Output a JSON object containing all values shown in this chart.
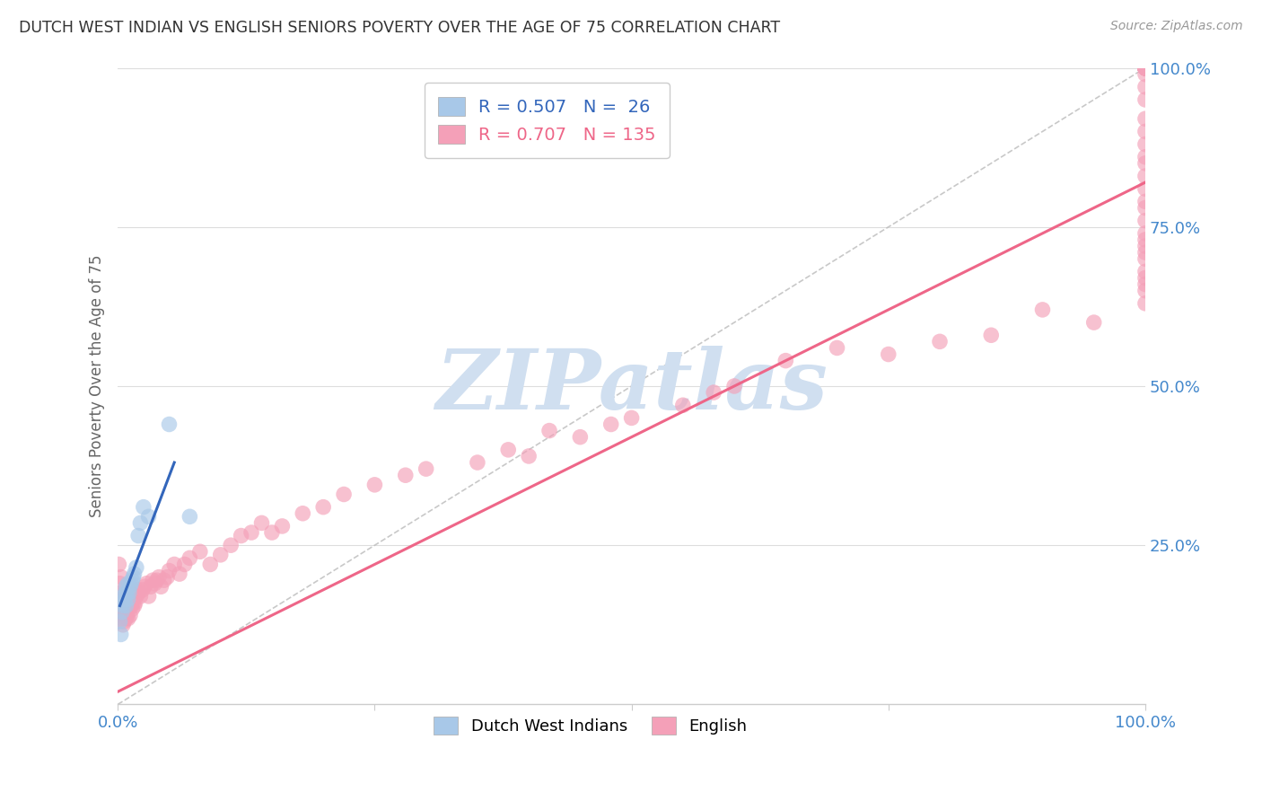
{
  "title": "DUTCH WEST INDIAN VS ENGLISH SENIORS POVERTY OVER THE AGE OF 75 CORRELATION CHART",
  "source": "Source: ZipAtlas.com",
  "ylabel": "Seniors Poverty Over the Age of 75",
  "blue_R": 0.507,
  "blue_N": 26,
  "pink_R": 0.707,
  "pink_N": 135,
  "blue_label": "Dutch West Indians",
  "pink_label": "English",
  "xlim": [
    0,
    1
  ],
  "ylim": [
    0,
    1
  ],
  "blue_color": "#A8C8E8",
  "pink_color": "#F4A0B8",
  "blue_line_color": "#3366BB",
  "pink_line_color": "#EE6688",
  "watermark": "ZIPatlas",
  "watermark_color": "#D0DFF0",
  "grid_color": "#DDDDDD",
  "title_color": "#333333",
  "axis_label_color": "#666666",
  "tick_label_color": "#4488CC",
  "bg_color": "#FFFFFF",
  "blue_scatter_x": [
    0.002,
    0.003,
    0.004,
    0.005,
    0.005,
    0.006,
    0.007,
    0.007,
    0.008,
    0.008,
    0.009,
    0.01,
    0.01,
    0.011,
    0.012,
    0.013,
    0.014,
    0.015,
    0.016,
    0.018,
    0.02,
    0.022,
    0.025,
    0.03,
    0.05,
    0.07
  ],
  "blue_scatter_y": [
    0.13,
    0.11,
    0.145,
    0.155,
    0.16,
    0.17,
    0.175,
    0.165,
    0.155,
    0.185,
    0.175,
    0.19,
    0.165,
    0.175,
    0.185,
    0.19,
    0.195,
    0.2,
    0.205,
    0.215,
    0.265,
    0.285,
    0.31,
    0.295,
    0.44,
    0.295
  ],
  "blue_line_x": [
    0.002,
    0.055
  ],
  "blue_line_y": [
    0.155,
    0.38
  ],
  "pink_scatter_x": [
    0.001,
    0.002,
    0.002,
    0.003,
    0.003,
    0.004,
    0.004,
    0.005,
    0.005,
    0.006,
    0.006,
    0.007,
    0.007,
    0.008,
    0.008,
    0.009,
    0.009,
    0.01,
    0.01,
    0.011,
    0.012,
    0.013,
    0.014,
    0.015,
    0.016,
    0.017,
    0.018,
    0.019,
    0.02,
    0.022,
    0.024,
    0.026,
    0.028,
    0.03,
    0.032,
    0.034,
    0.036,
    0.038,
    0.04,
    0.042,
    0.045,
    0.048,
    0.05,
    0.055,
    0.06,
    0.065,
    0.07,
    0.08,
    0.09,
    0.1,
    0.11,
    0.12,
    0.13,
    0.14,
    0.15,
    0.16,
    0.18,
    0.2,
    0.22,
    0.25,
    0.28,
    0.3,
    0.35,
    0.38,
    0.4,
    0.42,
    0.45,
    0.48,
    0.5,
    0.55,
    0.58,
    0.6,
    0.65,
    0.7,
    0.75,
    0.8,
    0.85,
    0.9,
    0.95,
    1.0,
    1.0,
    1.0,
    1.0,
    1.0,
    1.0,
    1.0,
    1.0,
    1.0,
    1.0,
    1.0,
    1.0,
    1.0,
    1.0,
    1.0,
    1.0,
    1.0,
    1.0,
    1.0,
    1.0,
    1.0,
    1.0,
    1.0,
    1.0,
    1.0,
    1.0,
    1.0,
    1.0,
    1.0,
    1.0,
    1.0,
    1.0,
    1.0,
    1.0,
    1.0,
    1.0,
    1.0,
    1.0,
    1.0,
    1.0,
    1.0,
    1.0,
    1.0,
    1.0,
    1.0,
    1.0,
    1.0,
    1.0,
    1.0,
    1.0,
    1.0,
    1.0,
    1.0,
    1.0,
    1.0,
    1.0
  ],
  "pink_scatter_y": [
    0.22,
    0.19,
    0.175,
    0.2,
    0.165,
    0.145,
    0.135,
    0.165,
    0.125,
    0.155,
    0.13,
    0.165,
    0.14,
    0.155,
    0.135,
    0.165,
    0.14,
    0.155,
    0.135,
    0.16,
    0.14,
    0.155,
    0.15,
    0.16,
    0.155,
    0.16,
    0.17,
    0.18,
    0.175,
    0.17,
    0.18,
    0.185,
    0.19,
    0.17,
    0.185,
    0.195,
    0.19,
    0.195,
    0.2,
    0.185,
    0.195,
    0.2,
    0.21,
    0.22,
    0.205,
    0.22,
    0.23,
    0.24,
    0.22,
    0.235,
    0.25,
    0.265,
    0.27,
    0.285,
    0.27,
    0.28,
    0.3,
    0.31,
    0.33,
    0.345,
    0.36,
    0.37,
    0.38,
    0.4,
    0.39,
    0.43,
    0.42,
    0.44,
    0.45,
    0.47,
    0.49,
    0.5,
    0.54,
    0.56,
    0.55,
    0.57,
    0.58,
    0.62,
    0.6,
    0.63,
    0.65,
    0.66,
    0.67,
    0.68,
    0.71,
    0.7,
    0.73,
    0.72,
    0.74,
    0.76,
    0.79,
    0.78,
    0.81,
    0.83,
    0.86,
    0.85,
    0.88,
    0.9,
    0.92,
    0.95,
    0.97,
    0.99,
    1.0,
    1.0,
    1.0,
    1.0,
    1.0,
    1.0,
    1.0,
    1.0,
    1.0,
    1.0,
    1.0,
    1.0,
    1.0,
    1.0,
    1.0,
    1.0,
    1.0,
    1.0,
    1.0,
    1.0,
    1.0,
    1.0,
    1.0,
    1.0,
    1.0,
    1.0,
    1.0,
    1.0,
    1.0,
    1.0,
    1.0,
    1.0,
    1.0
  ],
  "pink_line_x": [
    0.0,
    1.0
  ],
  "pink_line_y": [
    0.02,
    0.82
  ],
  "diag_line_x": [
    0.0,
    1.0
  ],
  "diag_line_y": [
    0.0,
    1.0
  ]
}
